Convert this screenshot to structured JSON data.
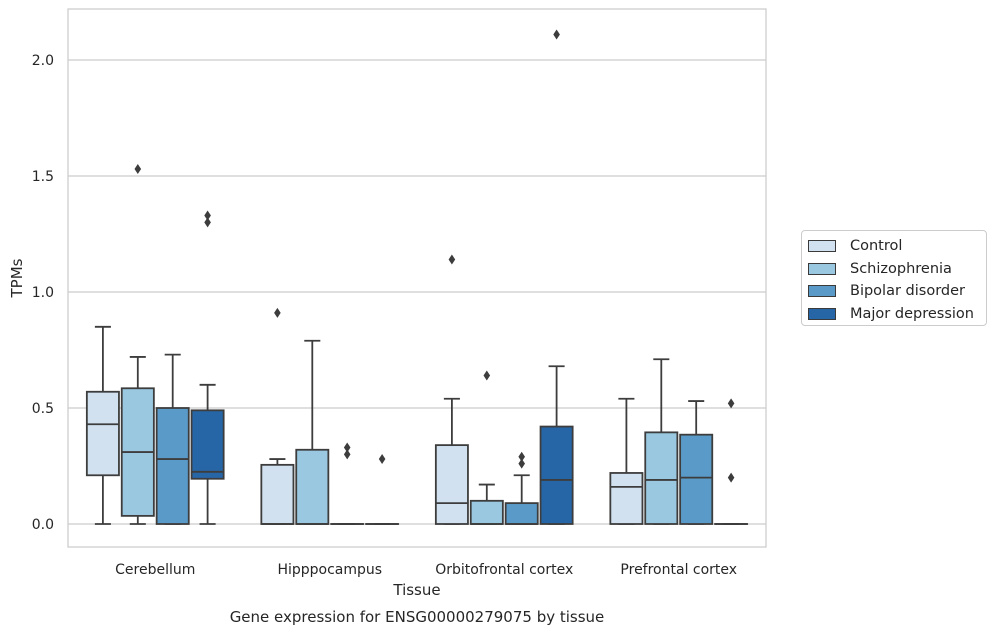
{
  "chart_data": {
    "type": "box",
    "caption": "Gene expression for ENSG00000279075 by tissue",
    "xlabel": "Tissue",
    "ylabel": "TPMs",
    "ylim": [
      -0.1,
      2.23
    ],
    "yticks": [
      "0.0",
      "0.5",
      "1.0",
      "1.5",
      "2.0"
    ],
    "ytick_values": [
      0.0,
      0.5,
      1.0,
      1.5,
      2.0
    ],
    "grid": "horizontal",
    "legend_position": "right",
    "categories": [
      "Cerebellum",
      "Hipppocampus",
      "Orbitofrontal cortex",
      "Prefrontal cortex"
    ],
    "series": [
      {
        "name": "Control",
        "color": "#d1e1f0",
        "boxes": [
          {
            "whisker_low": 0.0,
            "q1": 0.21,
            "median": 0.43,
            "q3": 0.57,
            "whisker_high": 0.85,
            "outliers": []
          },
          {
            "whisker_low": 0.0,
            "q1": 0.0,
            "median": 0.0,
            "q3": 0.255,
            "whisker_high": 0.28,
            "outliers": [
              0.91
            ]
          },
          {
            "whisker_low": 0.0,
            "q1": 0.0,
            "median": 0.09,
            "q3": 0.34,
            "whisker_high": 0.54,
            "outliers": [
              1.14
            ]
          },
          {
            "whisker_low": 0.0,
            "q1": 0.0,
            "median": 0.16,
            "q3": 0.22,
            "whisker_high": 0.54,
            "outliers": []
          }
        ]
      },
      {
        "name": "Schizophrenia",
        "color": "#9ac8e0",
        "boxes": [
          {
            "whisker_low": 0.0,
            "q1": 0.035,
            "median": 0.31,
            "q3": 0.585,
            "whisker_high": 0.72,
            "outliers": [
              1.53
            ]
          },
          {
            "whisker_low": 0.0,
            "q1": 0.0,
            "median": 0.0,
            "q3": 0.32,
            "whisker_high": 0.79,
            "outliers": []
          },
          {
            "whisker_low": 0.0,
            "q1": 0.0,
            "median": 0.0,
            "q3": 0.1,
            "whisker_high": 0.17,
            "outliers": [
              0.64
            ]
          },
          {
            "whisker_low": 0.0,
            "q1": 0.0,
            "median": 0.19,
            "q3": 0.395,
            "whisker_high": 0.71,
            "outliers": []
          }
        ]
      },
      {
        "name": "Bipolar disorder",
        "color": "#5a9ac8",
        "boxes": [
          {
            "whisker_low": 0.0,
            "q1": 0.0,
            "median": 0.28,
            "q3": 0.5,
            "whisker_high": 0.73,
            "outliers": []
          },
          {
            "whisker_low": 0.0,
            "q1": 0.0,
            "median": 0.0,
            "q3": 0.0,
            "whisker_high": 0.0,
            "outliers": [
              0.3,
              0.33
            ]
          },
          {
            "whisker_low": 0.0,
            "q1": 0.0,
            "median": 0.0,
            "q3": 0.09,
            "whisker_high": 0.21,
            "outliers": [
              0.26,
              0.29
            ]
          },
          {
            "whisker_low": 0.0,
            "q1": 0.0,
            "median": 0.2,
            "q3": 0.385,
            "whisker_high": 0.53,
            "outliers": []
          }
        ]
      },
      {
        "name": "Major depression",
        "color": "#2766a6",
        "boxes": [
          {
            "whisker_low": 0.0,
            "q1": 0.195,
            "median": 0.225,
            "q3": 0.49,
            "whisker_high": 0.6,
            "outliers": [
              1.3,
              1.33
            ]
          },
          {
            "whisker_low": 0.0,
            "q1": 0.0,
            "median": 0.0,
            "q3": 0.0,
            "whisker_high": 0.0,
            "outliers": [
              0.28
            ]
          },
          {
            "whisker_low": 0.0,
            "q1": 0.0,
            "median": 0.19,
            "q3": 0.42,
            "whisker_high": 0.68,
            "outliers": [
              2.11
            ]
          },
          {
            "whisker_low": 0.0,
            "q1": 0.0,
            "median": 0.0,
            "q3": 0.0,
            "whisker_high": 0.0,
            "outliers": [
              0.2,
              0.52
            ]
          }
        ]
      }
    ]
  }
}
